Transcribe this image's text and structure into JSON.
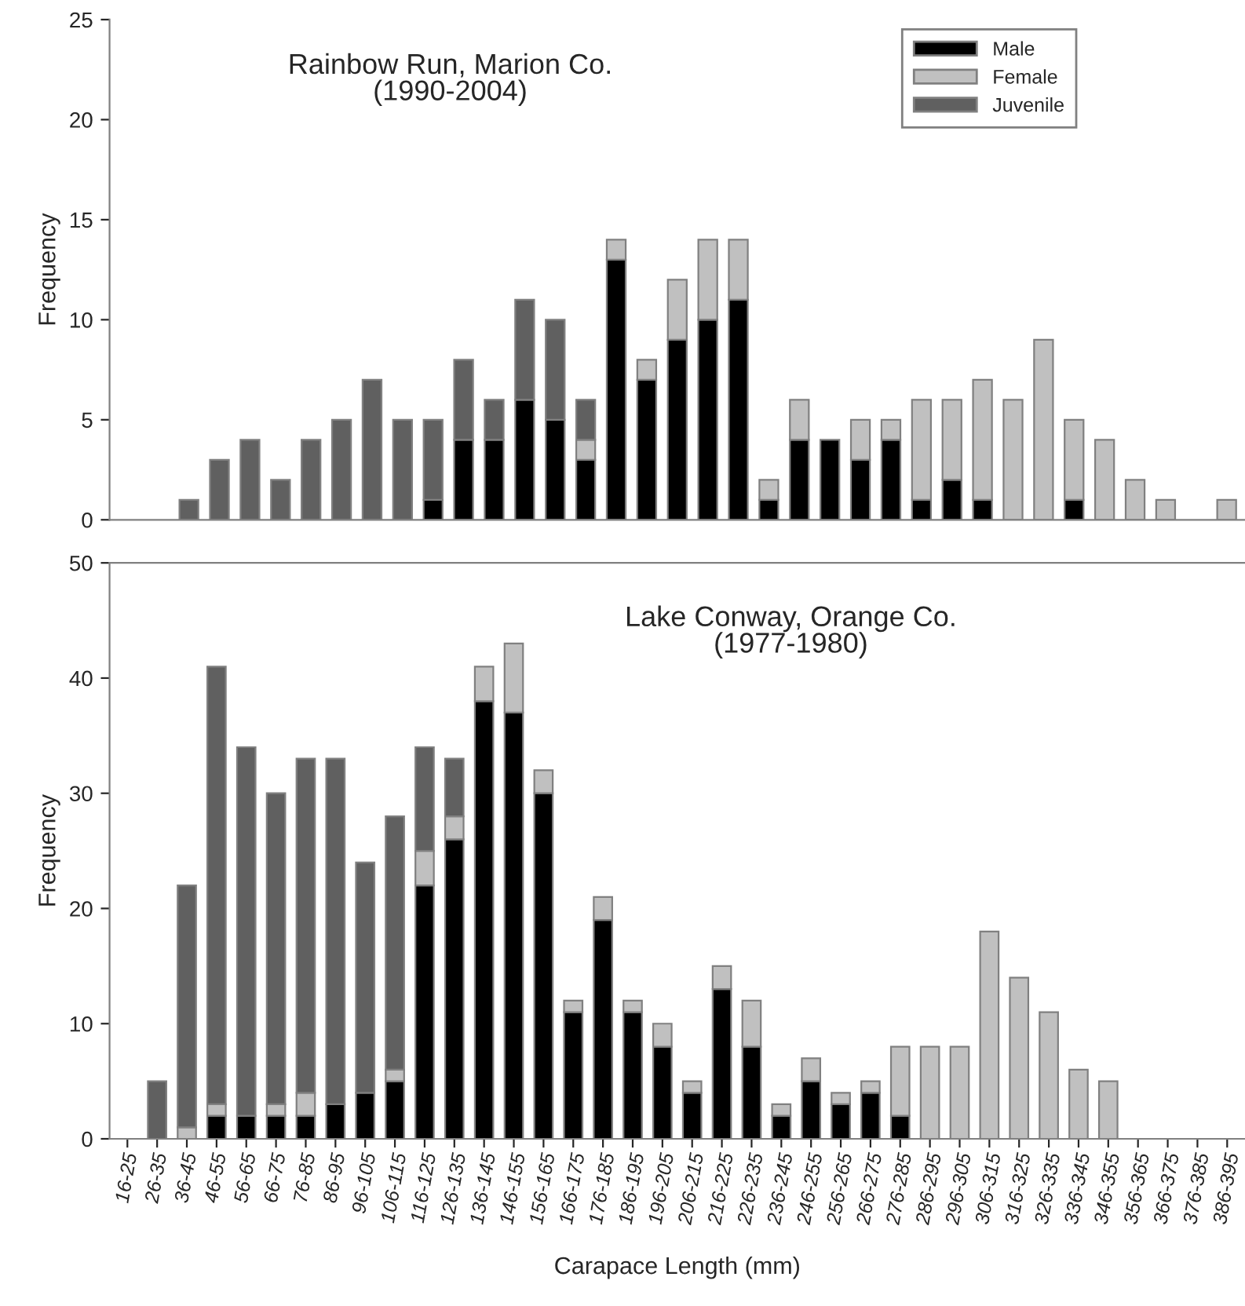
{
  "chart_data": [
    {
      "type": "bar",
      "title": "Rainbow Run, Marion Co.\n(1990-2004)",
      "ylabel": "Frequency",
      "stacked": true,
      "legend": "top right",
      "tick_labels": "y",
      "grid": false,
      "categories": [
        null,
        null,
        null,
        null,
        null,
        null,
        null,
        null,
        null,
        null,
        null,
        null,
        null,
        null,
        null,
        null,
        null,
        null,
        null,
        null,
        null,
        null,
        null,
        null,
        null,
        null,
        null,
        null,
        null,
        null,
        null,
        null,
        null,
        null,
        null,
        null,
        null
      ],
      "ylim": [
        0,
        25
      ],
      "yticks": [
        0,
        5,
        10,
        15,
        20,
        25
      ],
      "series": [
        {
          "name": "Male",
          "color": "#000000",
          "values": [
            0,
            0,
            0,
            0,
            0,
            0,
            0,
            0,
            0,
            0,
            1,
            4,
            4,
            6,
            5,
            3,
            13,
            7,
            9,
            10,
            11,
            1,
            4,
            4,
            3,
            4,
            1,
            2,
            1,
            0,
            0,
            1,
            0,
            0,
            0,
            0,
            0
          ]
        },
        {
          "name": "Female",
          "color": "#c0c0c0",
          "values": [
            0,
            0,
            0,
            0,
            0,
            0,
            0,
            0,
            0,
            0,
            0,
            0,
            0,
            0,
            0,
            1,
            1,
            1,
            3,
            4,
            3,
            1,
            2,
            0,
            2,
            1,
            5,
            4,
            6,
            6,
            9,
            4,
            4,
            2,
            1,
            0,
            1
          ]
        },
        {
          "name": "Juvenile",
          "color": "#606060",
          "values": [
            0,
            0,
            1,
            3,
            4,
            2,
            4,
            5,
            7,
            5,
            4,
            4,
            2,
            5,
            5,
            2,
            0,
            0,
            0,
            0,
            0,
            0,
            0,
            0,
            0,
            0,
            0,
            0,
            0,
            0,
            0,
            0,
            0,
            0,
            0,
            0,
            0
          ]
        }
      ]
    },
    {
      "type": "bar",
      "title": "Lake Conway, Orange Co.\n(1977-1980)",
      "ylabel": "Frequency",
      "xlabel": "Carapace Length (mm)",
      "stacked": true,
      "grid": false,
      "categories": [
        "16-25",
        "26-35",
        "36-45",
        "46-55",
        "56-65",
        "66-75",
        "76-85",
        "86-95",
        "96-105",
        "106-115",
        "116-125",
        "126-135",
        "136-145",
        "146-155",
        "156-165",
        "166-175",
        "176-185",
        "186-195",
        "196-205",
        "206-215",
        "216-225",
        "226-235",
        "236-245",
        "246-255",
        "256-265",
        "266-275",
        "276-285",
        "286-295",
        "296-305",
        "306-315",
        "316-325",
        "326-335",
        "336-345",
        "346-355",
        "356-365",
        "366-375",
        "376-385",
        "386-395"
      ],
      "ylim": [
        0,
        50
      ],
      "yticks": [
        0,
        10,
        20,
        30,
        40,
        50
      ],
      "series": [
        {
          "color": "#000000",
          "values": [
            0,
            0,
            0,
            2,
            2,
            2,
            2,
            3,
            4,
            5,
            22,
            26,
            38,
            37,
            30,
            11,
            19,
            11,
            8,
            4,
            13,
            8,
            2,
            5,
            3,
            4,
            2,
            0,
            0,
            0,
            0,
            0,
            0,
            0,
            0,
            0,
            0,
            0
          ]
        },
        {
          "color": "#c0c0c0",
          "values": [
            0,
            0,
            1,
            1,
            0,
            1,
            2,
            0,
            0,
            1,
            3,
            2,
            3,
            6,
            2,
            1,
            2,
            1,
            2,
            1,
            2,
            4,
            1,
            2,
            1,
            1,
            6,
            8,
            8,
            18,
            14,
            11,
            6,
            5,
            0,
            0,
            0,
            0
          ]
        },
        {
          "color": "#606060",
          "values": [
            0,
            5,
            21,
            38,
            32,
            27,
            29,
            30,
            20,
            22,
            9,
            5,
            0,
            0,
            0,
            0,
            0,
            0,
            0,
            0,
            0,
            0,
            0,
            0,
            0,
            0,
            0,
            0,
            0,
            0,
            0,
            0,
            0,
            0,
            0,
            0,
            0,
            0
          ]
        }
      ]
    }
  ]
}
